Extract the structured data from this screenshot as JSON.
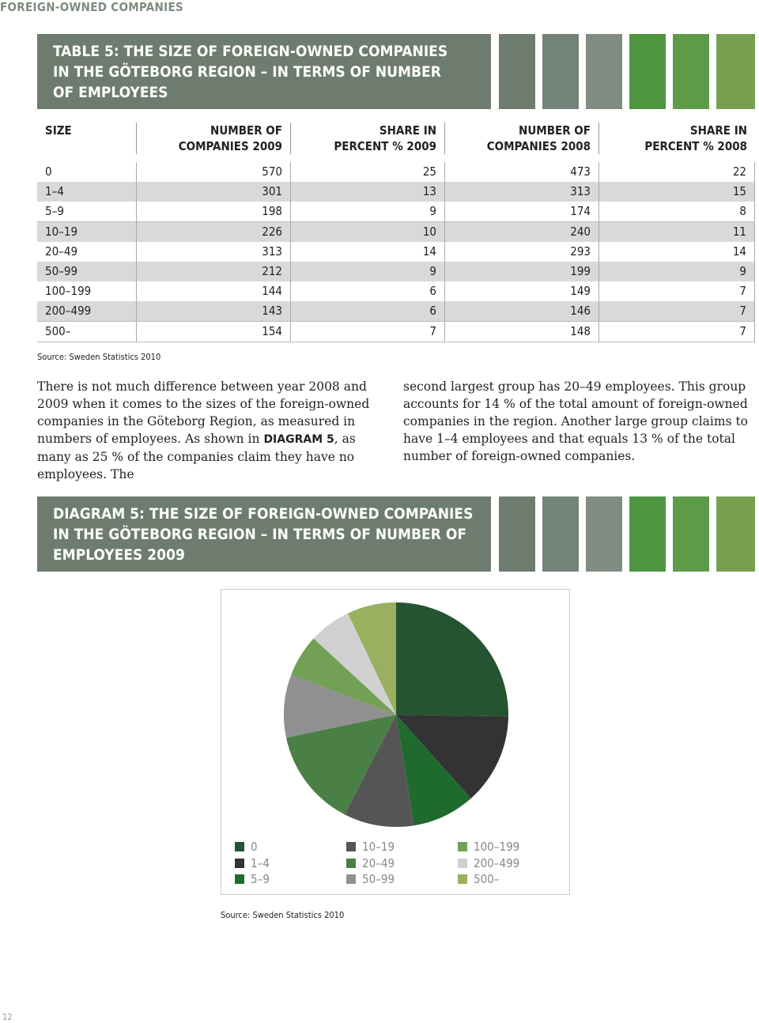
{
  "header": {
    "section": "FOREIGN-OWNED COMPANIES"
  },
  "table": {
    "title": [
      "TABLE 5: THE SIZE OF FOREIGN-OWNED COMPANIES",
      "IN THE GÖTEBORG REGION – IN TERMS OF NUMBER",
      "OF EMPLOYEES"
    ],
    "columns": [
      [
        "SIZE"
      ],
      [
        "NUMBER OF",
        "COMPANIES 2009"
      ],
      [
        "SHARE IN",
        "PERCENT % 2009"
      ],
      [
        "NUMBER OF",
        "COMPANIES 2008"
      ],
      [
        "SHARE IN",
        "PERCENT % 2008"
      ]
    ],
    "rows": [
      [
        "0",
        570,
        25,
        473,
        22
      ],
      [
        "1–4",
        301,
        13,
        313,
        15
      ],
      [
        "5–9",
        198,
        9,
        174,
        8
      ],
      [
        "10–19",
        226,
        10,
        240,
        11
      ],
      [
        "20–49",
        313,
        14,
        293,
        14
      ],
      [
        "50–99",
        212,
        9,
        199,
        9
      ],
      [
        "100–199",
        144,
        6,
        149,
        7
      ],
      [
        "200–499",
        143,
        6,
        146,
        7
      ],
      [
        "500–",
        154,
        7,
        148,
        7
      ]
    ],
    "source": "Source: Sweden Statistics 2010"
  },
  "body": {
    "left": [
      "There is not much difference between year 2008 and 2009 when it comes to the sizes of the foreign-owned companies in the Göteborg Region, as measured in numbers of employees. As shown in ",
      "DIAGRAM 5",
      ", as many as 25 % of the companies claim they have no employees. The"
    ],
    "right": "second largest group has 20–49 employees. This group accounts for 14 % of the total amount of foreign-owned companies in the region. Another large group claims to have 1–4 employees and that equals 13 % of the total number of foreign-owned companies."
  },
  "chart_data": {
    "type": "pie",
    "title": [
      "DIAGRAM 5: THE SIZE OF FOREIGN-OWNED COMPANIES",
      "IN THE GÖTEBORG REGION – IN TERMS OF NUMBER OF",
      "EMPLOYEES 2009"
    ],
    "categories": [
      "0",
      "1–4",
      "5–9",
      "10–19",
      "20–49",
      "50–99",
      "100–199",
      "200–499",
      "500–"
    ],
    "values": [
      25,
      13,
      9,
      10,
      14,
      9,
      6,
      6,
      7
    ],
    "colors": [
      "#245530",
      "#333333",
      "#1f6b2e",
      "#555555",
      "#4a7f45",
      "#909090",
      "#72a055",
      "#d0d0d0",
      "#98b060"
    ],
    "source": "Source: Sweden Statistics 2010"
  },
  "footer": {
    "page": "12"
  }
}
